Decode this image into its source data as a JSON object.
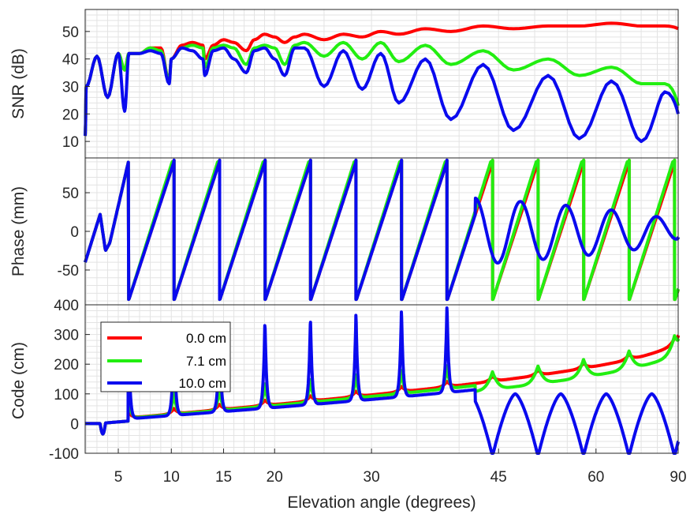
{
  "figure": {
    "xlabel": "Elevation angle (degrees)",
    "xticks": [
      "5",
      "10",
      "15",
      "20",
      "30",
      "45",
      "60",
      "90"
    ],
    "xtick_values": [
      5,
      10,
      15,
      20,
      30,
      45,
      60,
      90
    ],
    "x_scale": "sine of elevation angle",
    "grid": true,
    "colors": {
      "red": "#ff0000",
      "green": "#22ee11",
      "blue": "#0a0aee",
      "grid": "#e3e3e3",
      "axis": "#262626"
    }
  },
  "chart_data": [
    {
      "id": "snr",
      "type": "line",
      "ylabel": "SNR (dB)",
      "ylim": [
        4,
        58
      ],
      "yticks": [
        10,
        20,
        30,
        40,
        50
      ],
      "legend": false,
      "series": [
        {
          "color": "#ff0000",
          "x": [
            1.9,
            2,
            3,
            4,
            5,
            5.6,
            6,
            7,
            8,
            9,
            9.8,
            10,
            11,
            12,
            13,
            13.2,
            14,
            15,
            16,
            17.2,
            18,
            19,
            20,
            21,
            22,
            23,
            25,
            27,
            29,
            31,
            33,
            36,
            39,
            43,
            47,
            52,
            57,
            63,
            70,
            78,
            90
          ],
          "y": [
            12,
            30,
            41,
            26,
            42,
            36,
            42,
            42,
            44,
            44,
            32,
            40,
            45,
            46,
            45,
            40,
            45,
            47,
            46,
            43,
            47,
            49,
            48,
            46,
            48,
            49,
            47,
            49,
            48,
            50,
            49,
            51,
            50,
            52,
            51,
            52,
            52,
            53,
            52,
            52,
            51
          ]
        },
        {
          "color": "#22ee11",
          "x": [
            1.9,
            2,
            3,
            4,
            5,
            5.6,
            6,
            7,
            8,
            9,
            9.8,
            10,
            11,
            12,
            13,
            13.2,
            14,
            15,
            16,
            17.2,
            18,
            19,
            20,
            21,
            22,
            23,
            25,
            27,
            29,
            31,
            33,
            36,
            39,
            43,
            47,
            52,
            57,
            63,
            70,
            78,
            90
          ],
          "y": [
            12,
            30,
            41,
            26,
            42,
            36,
            42,
            42,
            44,
            43,
            32,
            40,
            44,
            45,
            44,
            37,
            44,
            45,
            44,
            38,
            44,
            45,
            44,
            38,
            45,
            46,
            41,
            46,
            40,
            46,
            39,
            45,
            38,
            43,
            36,
            40,
            34,
            37,
            31,
            31,
            23
          ]
        },
        {
          "color": "#0a0aee",
          "x": [
            1.9,
            2,
            3,
            4,
            5,
            5.6,
            6,
            7,
            8,
            9,
            9.8,
            10,
            11,
            12,
            13,
            13.2,
            14,
            15,
            16,
            17.2,
            18,
            19,
            20,
            21,
            22,
            23,
            25,
            27,
            29,
            31,
            33,
            36,
            39,
            43,
            47,
            52,
            57,
            63,
            70,
            78,
            90
          ],
          "y": [
            12,
            30,
            41,
            26,
            42,
            21,
            42,
            42,
            43,
            42,
            31,
            40,
            44,
            43,
            40,
            34,
            43,
            44,
            40,
            35,
            43,
            44,
            40,
            34,
            44,
            44,
            30,
            43,
            29,
            42,
            24,
            40,
            18,
            38,
            14,
            34,
            11,
            32,
            10,
            28,
            20
          ]
        }
      ]
    },
    {
      "id": "phase",
      "type": "line",
      "ylabel": "Phase (mm)",
      "ylim": [
        -95,
        95
      ],
      "yticks": [
        -50,
        0,
        50
      ],
      "legend": false,
      "series": [
        {
          "color": "#ff0000",
          "wrap_start": 5.95,
          "wrap_period": 0.0742,
          "wrap_amplitude": 90,
          "note_values": [
            -40,
            22,
            -25
          ]
        },
        {
          "color": "#22ee11",
          "wrap_start": 5.95,
          "wrap_period": 0.0742,
          "wrap_amplitude": 90,
          "note_values": [
            -40,
            22,
            -25
          ]
        },
        {
          "color": "#0a0aee",
          "wrap_start": 5.95,
          "wrap_period": 0.0742,
          "wrap_amplitude": 90,
          "damp_start": 42,
          "note_values": [
            -40,
            22,
            -25
          ]
        }
      ]
    },
    {
      "id": "code",
      "type": "line",
      "ylabel": "Code (cm)",
      "ylim": [
        -100,
        400
      ],
      "yticks": [
        -100,
        0,
        100,
        200,
        300,
        400
      ],
      "legend": true,
      "legend_location": "top-left",
      "series": [
        {
          "name": "0.0 cm",
          "color": "#ff0000"
        },
        {
          "name": "7.1 cm",
          "color": "#22ee11"
        },
        {
          "name": "10.0 cm",
          "color": "#0a0aee"
        }
      ]
    }
  ]
}
